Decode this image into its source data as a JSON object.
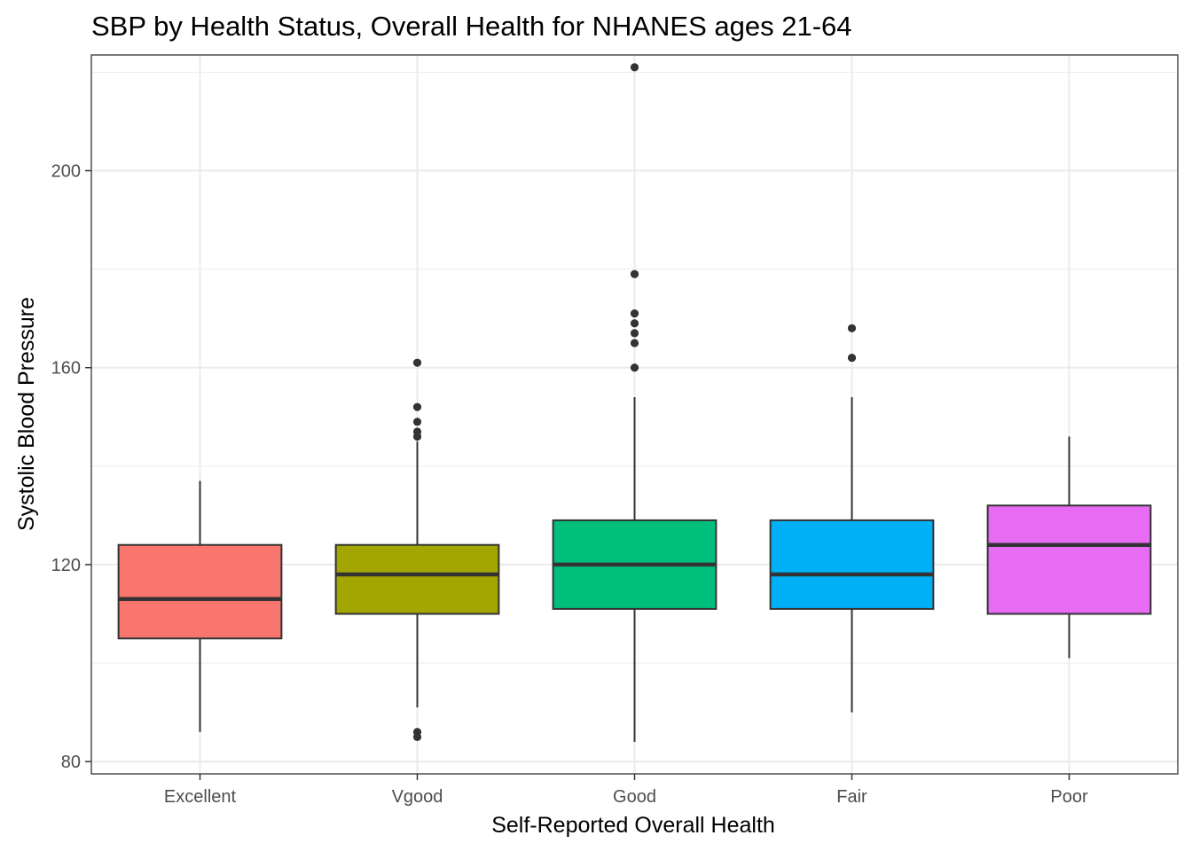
{
  "chart_data": {
    "type": "boxplot",
    "title": "SBP by Health Status, Overall Health for NHANES ages 21-64",
    "xlabel": "Self-Reported Overall Health",
    "ylabel": "Systolic Blood Pressure",
    "ylim": [
      77.5,
      223.5
    ],
    "yticks": [
      80,
      120,
      160,
      200
    ],
    "grid": true,
    "legend": "none",
    "categories": [
      "Excellent",
      "Vgood",
      "Good",
      "Fair",
      "Poor"
    ],
    "boxes": [
      {
        "category": "Excellent",
        "fill": "#F8766D",
        "whisker_low": 86,
        "q1": 105,
        "median": 113,
        "q3": 124,
        "whisker_high": 137,
        "outliers": []
      },
      {
        "category": "Vgood",
        "fill": "#A3A500",
        "whisker_low": 91,
        "q1": 110,
        "median": 118,
        "q3": 124,
        "whisker_high": 145,
        "outliers": [
          161,
          152,
          149,
          147,
          146,
          86,
          85
        ]
      },
      {
        "category": "Good",
        "fill": "#00BF7D",
        "whisker_low": 84,
        "q1": 111,
        "median": 120,
        "q3": 129,
        "whisker_high": 154,
        "outliers": [
          221,
          179,
          171,
          169,
          167,
          165,
          160
        ]
      },
      {
        "category": "Fair",
        "fill": "#00B0F6",
        "whisker_low": 90,
        "q1": 111,
        "median": 118,
        "q3": 129,
        "whisker_high": 154,
        "outliers": [
          168,
          162
        ]
      },
      {
        "category": "Poor",
        "fill": "#E76BF3",
        "whisker_low": 101,
        "q1": 110,
        "median": 124,
        "q3": 132,
        "whisker_high": 146,
        "outliers": []
      }
    ]
  }
}
